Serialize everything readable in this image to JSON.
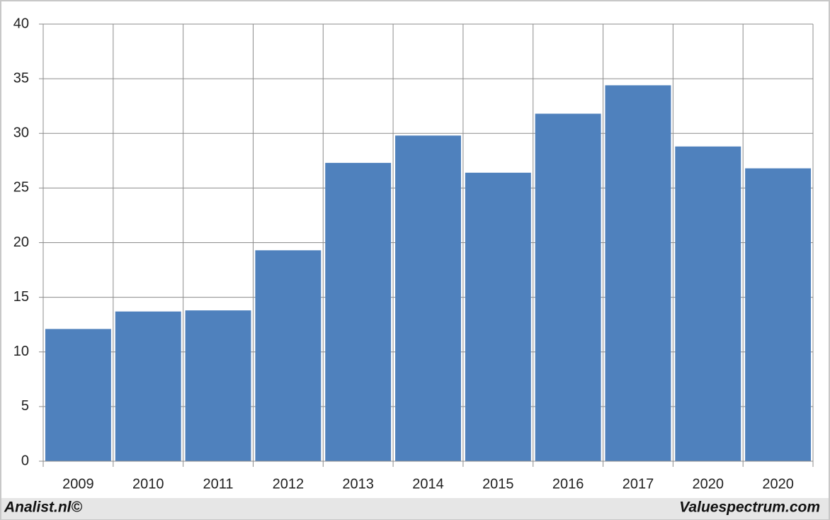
{
  "chart_data": {
    "type": "bar",
    "categories": [
      "2009",
      "2010",
      "2011",
      "2012",
      "2013",
      "2014",
      "2015",
      "2016",
      "2017",
      "2020",
      "2020"
    ],
    "values": [
      12.1,
      13.7,
      13.8,
      19.3,
      27.3,
      29.8,
      26.4,
      31.8,
      34.4,
      28.8,
      26.8
    ],
    "color": "#4f81bd",
    "ylim": [
      0,
      40
    ],
    "yticks": [
      0,
      5,
      10,
      15,
      20,
      25,
      30,
      35,
      40
    ],
    "grid": true,
    "footer_left": "Analist.nl©",
    "footer_right": "Valuespectrum.com"
  }
}
